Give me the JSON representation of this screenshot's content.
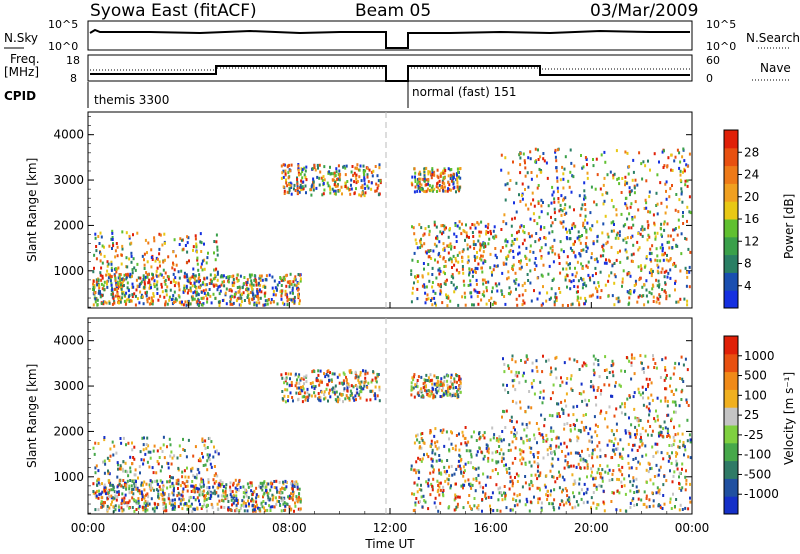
{
  "header": {
    "title": "Syowa East (fitACF)",
    "beam": "Beam 05",
    "date": "03/Mar/2009"
  },
  "panels": {
    "nsky": {
      "label": "N.Sky",
      "right_label": "N.Search",
      "ticks_left": [
        "10^5",
        "10^0"
      ],
      "ticks_right": [
        "10^5",
        "10^0"
      ]
    },
    "freq": {
      "label_top": "Freq.",
      "label_bottom": "[MHz]",
      "right_label": "Nave",
      "ticks_left": [
        "18",
        "8"
      ],
      "ticks_right": [
        "60",
        "0"
      ]
    },
    "cpid": {
      "label": "CPID",
      "mode1": "themis 3300",
      "mode2": "normal (fast) 151"
    }
  },
  "chart_data": [
    {
      "type": "heatmap",
      "title": "",
      "xlabel": "",
      "ylabel": "Slant Range [km]",
      "ylim": [
        180,
        4500
      ],
      "yticks": [
        "4000",
        "3000",
        "2000",
        "1000"
      ],
      "colorbar": {
        "label": "Power [dB]",
        "ticks": [
          "28",
          "24",
          "20",
          "16",
          "12",
          "8",
          "4"
        ],
        "colors": [
          "#1530e0",
          "#1a4fb0",
          "#2a7f64",
          "#3aa04a",
          "#60c030",
          "#e8c815",
          "#f0a020",
          "#ee7a18",
          "#e85010",
          "#e02008"
        ]
      }
    },
    {
      "type": "heatmap",
      "title": "",
      "xlabel": "Time UT",
      "ylabel": "Slant Range [km]",
      "ylim": [
        180,
        4500
      ],
      "yticks": [
        "4000",
        "3000",
        "2000",
        "1000"
      ],
      "xticks": [
        "00:00",
        "04:00",
        "08:00",
        "12:00",
        "16:00",
        "20:00",
        "00:00"
      ],
      "colorbar": {
        "label": "Velocity [m s⁻¹]",
        "ticks": [
          "1000",
          "500",
          "100",
          "25",
          "-25",
          "-100",
          "-500",
          "-1000"
        ],
        "colors": [
          "#1530c8",
          "#2050a0",
          "#2f7a66",
          "#46a84a",
          "#7fd040",
          "#c4c4c4",
          "#f0b020",
          "#f08a18",
          "#e85010",
          "#e02008"
        ]
      }
    }
  ]
}
